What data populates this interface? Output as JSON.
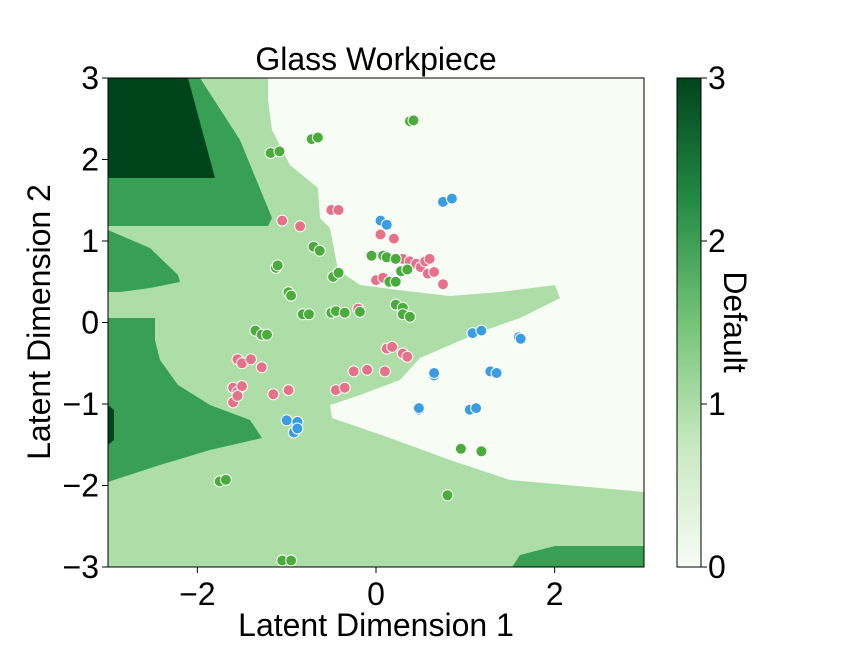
{
  "chart_data": {
    "type": "scatter",
    "title": "Glass Workpiece",
    "xlabel": "Latent Dimension 1",
    "ylabel": "Latent Dimension 2",
    "xlim": [
      -3,
      3
    ],
    "ylim": [
      -3,
      3
    ],
    "xticks": [
      "−2",
      "0",
      "2"
    ],
    "xtick_values": [
      -2,
      0,
      2
    ],
    "yticks": [
      "−3",
      "−2",
      "−1",
      "0",
      "1",
      "2",
      "3"
    ],
    "ytick_values": [
      -3,
      -2,
      -1,
      0,
      1,
      2,
      3
    ],
    "grid": false,
    "colorbar": {
      "label": "Default",
      "range": [
        0,
        3
      ],
      "ticks": [
        "0",
        "1",
        "2",
        "3"
      ],
      "tick_values": [
        0,
        1,
        2,
        3
      ],
      "colormap": [
        "#f7fcf5",
        "#c7e9c0",
        "#74c476",
        "#238b45",
        "#00441b"
      ]
    },
    "region_colors": [
      "#f7fcf5",
      "#addea7",
      "#37a055",
      "#00441b"
    ],
    "series": [
      {
        "color": "#e8718a",
        "points": [
          [
            -1.05,
            1.25
          ],
          [
            -0.85,
            1.18
          ],
          [
            -0.5,
            1.38
          ],
          [
            -0.42,
            1.38
          ],
          [
            0.05,
            1.08
          ],
          [
            0.2,
            1.03
          ],
          [
            0.0,
            0.52
          ],
          [
            0.08,
            0.55
          ],
          [
            0.3,
            0.78
          ],
          [
            0.38,
            0.75
          ],
          [
            0.45,
            0.72
          ],
          [
            0.5,
            0.68
          ],
          [
            0.55,
            0.75
          ],
          [
            0.58,
            0.6
          ],
          [
            0.65,
            0.62
          ],
          [
            0.6,
            0.78
          ],
          [
            0.75,
            0.47
          ],
          [
            -0.2,
            0.17
          ],
          [
            -1.55,
            -0.45
          ],
          [
            -1.5,
            -0.5
          ],
          [
            -1.4,
            -0.45
          ],
          [
            -1.28,
            -0.55
          ],
          [
            -1.6,
            -0.8
          ],
          [
            -1.55,
            -0.85
          ],
          [
            -1.5,
            -0.78
          ],
          [
            -1.6,
            -0.98
          ],
          [
            -1.55,
            -0.9
          ],
          [
            -1.15,
            -0.88
          ],
          [
            -0.98,
            -0.83
          ],
          [
            -0.45,
            -0.83
          ],
          [
            -0.35,
            -0.8
          ],
          [
            -0.25,
            -0.6
          ],
          [
            -0.1,
            -0.58
          ],
          [
            0.1,
            -0.6
          ],
          [
            0.12,
            -0.32
          ],
          [
            0.18,
            -0.3
          ],
          [
            0.3,
            -0.38
          ],
          [
            0.35,
            -0.42
          ]
        ]
      },
      {
        "color": "#4aac3a",
        "points": [
          [
            -0.72,
            2.25
          ],
          [
            -0.65,
            2.27
          ],
          [
            0.38,
            2.47
          ],
          [
            0.42,
            2.48
          ],
          [
            -1.18,
            2.08
          ],
          [
            -1.08,
            2.1
          ],
          [
            -0.7,
            0.93
          ],
          [
            -0.63,
            0.88
          ],
          [
            -1.12,
            0.67
          ],
          [
            -1.1,
            0.7
          ],
          [
            -0.48,
            0.56
          ],
          [
            -0.42,
            0.61
          ],
          [
            -0.98,
            0.37
          ],
          [
            -0.95,
            0.33
          ],
          [
            -0.82,
            0.1
          ],
          [
            -0.75,
            0.1
          ],
          [
            -0.5,
            0.12
          ],
          [
            -0.45,
            0.14
          ],
          [
            -0.35,
            0.12
          ],
          [
            -0.18,
            0.13
          ],
          [
            -1.35,
            -0.1
          ],
          [
            -1.28,
            -0.15
          ],
          [
            -1.22,
            -0.15
          ],
          [
            -0.05,
            0.82
          ],
          [
            0.08,
            0.82
          ],
          [
            0.12,
            0.8
          ],
          [
            0.22,
            0.78
          ],
          [
            0.28,
            0.63
          ],
          [
            0.35,
            0.65
          ],
          [
            0.15,
            0.5
          ],
          [
            0.22,
            0.5
          ],
          [
            0.22,
            0.22
          ],
          [
            0.3,
            0.18
          ],
          [
            0.3,
            0.1
          ],
          [
            0.38,
            0.07
          ],
          [
            0.95,
            -1.55
          ],
          [
            1.18,
            -1.58
          ],
          [
            0.8,
            -2.12
          ],
          [
            -1.75,
            -1.95
          ],
          [
            -1.68,
            -1.93
          ],
          [
            -1.05,
            -2.92
          ],
          [
            -0.95,
            -2.92
          ]
        ]
      },
      {
        "color": "#3b9de1",
        "points": [
          [
            0.05,
            1.25
          ],
          [
            0.12,
            1.2
          ],
          [
            0.75,
            1.48
          ],
          [
            0.85,
            1.52
          ],
          [
            1.08,
            -0.13
          ],
          [
            1.18,
            -0.1
          ],
          [
            1.6,
            -0.18
          ],
          [
            1.62,
            -0.2
          ],
          [
            1.28,
            -0.6
          ],
          [
            1.35,
            -0.62
          ],
          [
            0.65,
            -0.65
          ],
          [
            0.65,
            -0.62
          ],
          [
            0.48,
            -1.07
          ],
          [
            0.48,
            -1.05
          ],
          [
            1.05,
            -1.07
          ],
          [
            1.12,
            -1.05
          ],
          [
            -1.0,
            -1.2
          ],
          [
            -0.88,
            -1.22
          ],
          [
            -0.92,
            -1.35
          ],
          [
            -0.88,
            -1.3
          ]
        ]
      }
    ]
  }
}
